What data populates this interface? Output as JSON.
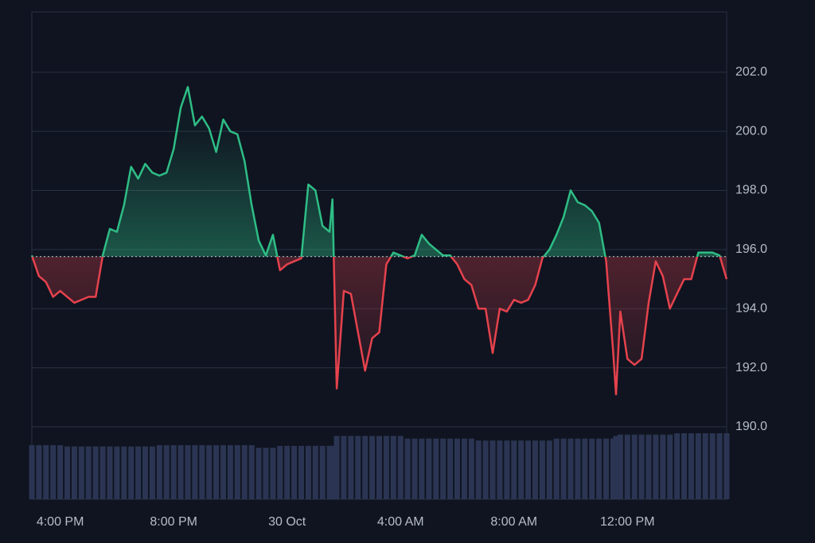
{
  "chart_data": {
    "type": "baseline",
    "x": [
      15,
      15.25,
      15.5,
      15.75,
      16,
      16.25,
      16.5,
      16.75,
      17,
      17.25,
      17.5,
      17.75,
      18,
      18.25,
      18.5,
      18.75,
      19,
      19.25,
      19.5,
      19.75,
      20,
      20.25,
      20.5,
      20.75,
      21,
      21.25,
      21.5,
      21.75,
      22,
      22.25,
      22.5,
      22.75,
      23,
      23.25,
      23.5,
      23.75,
      24,
      24.25,
      24.5,
      24.75,
      25,
      25.25,
      25.5,
      25.6,
      25.75,
      26,
      26.25,
      26.5,
      26.75,
      27,
      27.25,
      27.5,
      27.75,
      28,
      28.25,
      28.5,
      28.75,
      29,
      29.25,
      29.5,
      29.75,
      30,
      30.25,
      30.5,
      30.75,
      31,
      31.25,
      31.5,
      31.75,
      32,
      32.25,
      32.5,
      32.75,
      33,
      33.25,
      33.5,
      33.75,
      34,
      34.25,
      34.5,
      34.75,
      35,
      35.25,
      35.5,
      35.6,
      35.75,
      36,
      36.25,
      36.5,
      36.75,
      37,
      37.25,
      37.5,
      37.75,
      38,
      38.25,
      38.5,
      38.75,
      39,
      39.25,
      39.5
    ],
    "values": [
      195.8,
      195.1,
      194.9,
      194.4,
      194.6,
      194.4,
      194.2,
      194.3,
      194.4,
      194.4,
      195.8,
      196.7,
      196.6,
      197.5,
      198.8,
      198.4,
      198.9,
      198.6,
      198.5,
      198.6,
      199.4,
      200.8,
      201.5,
      200.2,
      200.5,
      200.1,
      199.3,
      200.4,
      200.0,
      199.9,
      199.0,
      197.5,
      196.3,
      195.8,
      196.5,
      195.3,
      195.5,
      195.6,
      195.7,
      198.2,
      198.0,
      196.8,
      196.6,
      197.7,
      191.3,
      194.6,
      194.5,
      193.2,
      191.9,
      193.0,
      193.2,
      195.5,
      195.9,
      195.8,
      195.7,
      195.8,
      196.5,
      196.2,
      196.0,
      195.8,
      195.8,
      195.5,
      195.0,
      194.8,
      194.0,
      194.0,
      192.5,
      194.0,
      193.9,
      194.3,
      194.2,
      194.3,
      194.8,
      195.7,
      196.0,
      196.5,
      197.1,
      198.0,
      197.6,
      197.5,
      197.3,
      196.9,
      195.6,
      192.5,
      191.1,
      193.9,
      192.3,
      192.1,
      192.3,
      194.2,
      195.6,
      195.1,
      194.0,
      194.5,
      195.0,
      195.0,
      195.9,
      195.9,
      195.9,
      195.8,
      195.0
    ],
    "baseline": 195.76,
    "up_color": "#2ebd85",
    "down_color": "#e5424d",
    "xlim": [
      15,
      39.5
    ],
    "xticks": [
      {
        "value": 16,
        "label": "4:00 PM"
      },
      {
        "value": 20,
        "label": "8:00 PM"
      },
      {
        "value": 24,
        "label": "30 Oct"
      },
      {
        "value": 28,
        "label": "4:00 AM"
      },
      {
        "value": 32,
        "label": "8:00 AM"
      },
      {
        "value": 36,
        "label": "12:00 PM"
      }
    ],
    "ylim": [
      187.55,
      204.04
    ],
    "yticks": [
      {
        "value": 190,
        "label": "190.0"
      },
      {
        "value": 192,
        "label": "192.0"
      },
      {
        "value": 194,
        "label": "194.0"
      },
      {
        "value": 196,
        "label": "196.0"
      },
      {
        "value": 198,
        "label": "198.0"
      },
      {
        "value": 200,
        "label": "200.0"
      },
      {
        "value": 202,
        "label": "202.0"
      }
    ],
    "grid": true,
    "volume": {
      "color": "#2b3553",
      "ylim": [
        0,
        100
      ],
      "values": [
        82,
        82,
        82,
        82,
        82,
        80,
        80,
        80,
        80,
        80,
        80,
        80,
        80,
        80,
        80,
        80,
        80,
        80,
        82,
        82,
        82,
        82,
        82,
        82,
        82,
        82,
        82,
        82,
        82,
        82,
        82,
        82,
        78,
        78,
        78,
        81,
        81,
        81,
        81,
        81,
        81,
        81,
        81,
        81,
        96,
        96,
        96,
        96,
        96,
        96,
        96,
        96,
        96,
        96,
        92,
        92,
        92,
        92,
        92,
        92,
        92,
        92,
        92,
        92,
        89,
        89,
        89,
        89,
        89,
        89,
        89,
        89,
        89,
        89,
        89,
        92,
        92,
        92,
        92,
        92,
        92,
        92,
        92,
        92,
        96,
        98,
        98,
        98,
        98,
        98,
        98,
        98,
        98,
        100,
        100,
        100,
        100,
        100,
        100,
        100,
        100
      ]
    }
  }
}
